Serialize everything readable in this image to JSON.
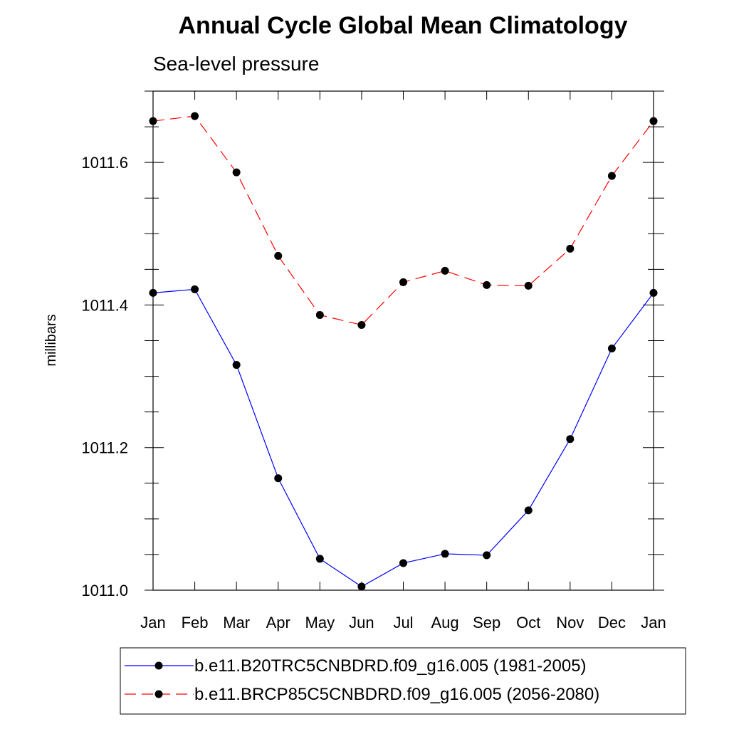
{
  "chart_data": {
    "type": "line",
    "title": "Annual Cycle Global Mean Climatology",
    "subtitle": "Sea-level pressure",
    "xlabel": "",
    "ylabel": "millibars",
    "categories": [
      "Jan",
      "Feb",
      "Mar",
      "Apr",
      "May",
      "Jun",
      "Jul",
      "Aug",
      "Sep",
      "Oct",
      "Nov",
      "Dec",
      "Jan"
    ],
    "ylim": [
      1011.0,
      1011.7
    ],
    "yticks": [
      1011.0,
      1011.2,
      1011.4,
      1011.6
    ],
    "ytick_labels": [
      "1011.0",
      "1011.2",
      "1011.4",
      "1011.6"
    ],
    "series": [
      {
        "name": "b.e11.B20TRC5CNBDRD.f09_g16.005 (1981-2005)",
        "color": "#0000ff",
        "dash": "solid",
        "values": [
          1011.417,
          1011.422,
          1011.316,
          1011.157,
          1011.044,
          1011.005,
          1011.038,
          1011.051,
          1011.049,
          1011.112,
          1011.212,
          1011.339,
          1011.417
        ]
      },
      {
        "name": "b.e11.BRCP85C5CNBDRD.f09_g16.005 (2056-2080)",
        "color": "#ff0000",
        "dash": "dashed",
        "values": [
          1011.658,
          1011.665,
          1011.586,
          1011.469,
          1011.386,
          1011.372,
          1011.432,
          1011.448,
          1011.428,
          1011.427,
          1011.479,
          1011.581,
          1011.658
        ]
      }
    ],
    "legend_position": "bottom",
    "grid": false
  }
}
